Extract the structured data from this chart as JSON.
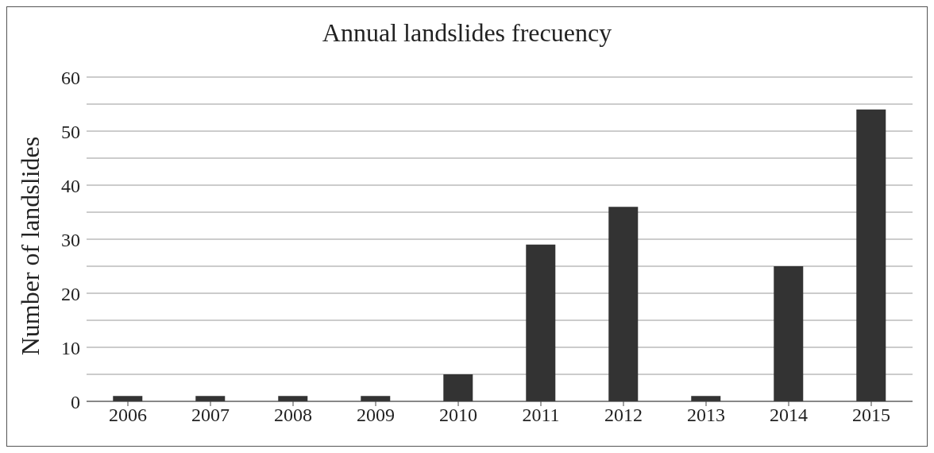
{
  "chart_data": {
    "type": "bar",
    "title": "Annual landslides frecuency",
    "ylabel": "Number of landslides",
    "categories": [
      "2006",
      "2007",
      "2008",
      "2009",
      "2010",
      "2011",
      "2012",
      "2013",
      "2014",
      "2015"
    ],
    "values": [
      1,
      1,
      1,
      1,
      5,
      29,
      36,
      1,
      25,
      54
    ],
    "color": "#333333",
    "ylim": [
      0,
      60
    ],
    "yticks": [
      0,
      {
        "value": 5,
        "label": null
      },
      10,
      {
        "value": 15,
        "label": null
      },
      20,
      {
        "value": 25,
        "label": null
      },
      30,
      {
        "value": 35,
        "label": null
      },
      40,
      {
        "value": 45,
        "label": null
      },
      50,
      {
        "value": 55,
        "label": null
      },
      60
    ],
    "grid": "y"
  }
}
